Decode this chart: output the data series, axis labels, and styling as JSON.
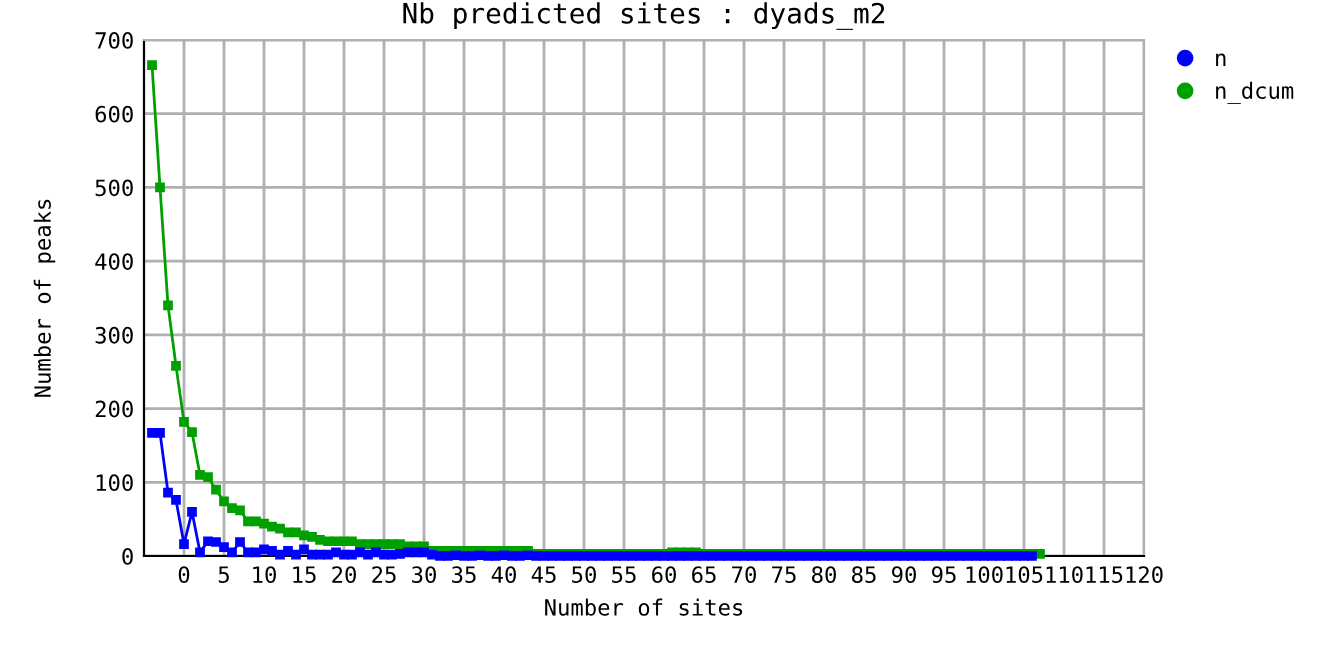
{
  "chart_data": {
    "type": "line",
    "title": "Nb predicted sites : dyads_m2",
    "xlabel": "Number of sites",
    "ylabel": "Number of peaks",
    "xlim": [
      -5,
      120
    ],
    "xticks": [
      0,
      5,
      10,
      15,
      20,
      25,
      30,
      35,
      40,
      45,
      50,
      55,
      60,
      65,
      70,
      75,
      80,
      85,
      90,
      95,
      100,
      105,
      110,
      115,
      120
    ],
    "ylim": [
      0,
      700
    ],
    "yticks": [
      0,
      100,
      200,
      300,
      400,
      500,
      600,
      700
    ],
    "grid": true,
    "legend": "top right",
    "marker": "square",
    "line_style": "solid",
    "series": [
      {
        "name": "n",
        "color": "#0000ff",
        "x": [
          -4,
          -3,
          -2,
          -1,
          0,
          1,
          2,
          3,
          4,
          5,
          6,
          7,
          8,
          9,
          10,
          11,
          12,
          13,
          14,
          15,
          16,
          17,
          18,
          19,
          20,
          21,
          22,
          23,
          24,
          25,
          26,
          27,
          28,
          29,
          30,
          31,
          32,
          33,
          34,
          35,
          36,
          37,
          38,
          39,
          40,
          41,
          42,
          43,
          44,
          45,
          46,
          47,
          48,
          49,
          50,
          51,
          52,
          53,
          54,
          55,
          56,
          57,
          58,
          59,
          60,
          61,
          62,
          63,
          64,
          65,
          66,
          67,
          68,
          69,
          70,
          71,
          72,
          73,
          74,
          75,
          76,
          77,
          78,
          79,
          80,
          81,
          82,
          83,
          84,
          85,
          86,
          87,
          88,
          89,
          90,
          91,
          92,
          93,
          94,
          95,
          96,
          97,
          98,
          99,
          100,
          101,
          102,
          103,
          104,
          105,
          106
        ],
        "values": [
          167,
          167,
          86,
          76,
          16,
          60,
          5,
          20,
          19,
          12,
          5,
          19,
          5,
          5,
          9,
          7,
          2,
          7,
          2,
          9,
          2,
          2,
          2,
          5,
          2,
          2,
          5,
          2,
          5,
          2,
          2,
          3,
          5,
          5,
          5,
          2,
          0,
          0,
          1,
          0,
          0,
          1,
          0,
          0,
          1,
          0,
          0,
          1,
          0,
          0,
          0,
          0,
          0,
          0,
          0,
          0,
          0,
          0,
          0,
          0,
          0,
          0,
          0,
          0,
          0,
          0,
          0,
          0,
          0,
          0,
          0,
          0,
          0,
          0,
          0,
          0,
          0,
          0,
          0,
          0,
          0,
          0,
          0,
          0,
          0,
          0,
          0,
          0,
          0,
          0,
          0,
          0,
          0,
          0,
          0,
          0,
          0,
          0,
          0,
          0,
          0,
          0,
          0,
          0,
          0,
          0,
          0,
          0,
          0,
          0,
          0
        ]
      },
      {
        "name": "n_dcum",
        "color": "#00a000",
        "x": [
          -4,
          -3,
          -2,
          -1,
          0,
          1,
          2,
          3,
          4,
          5,
          6,
          7,
          8,
          9,
          10,
          11,
          12,
          13,
          14,
          15,
          16,
          17,
          18,
          19,
          20,
          21,
          22,
          23,
          24,
          25,
          26,
          27,
          28,
          29,
          30,
          31,
          32,
          33,
          34,
          35,
          36,
          37,
          38,
          39,
          40,
          41,
          42,
          43,
          44,
          45,
          46,
          47,
          48,
          49,
          50,
          51,
          52,
          53,
          54,
          55,
          56,
          57,
          58,
          59,
          60,
          61,
          62,
          63,
          64,
          65,
          66,
          67,
          68,
          69,
          70,
          71,
          72,
          73,
          74,
          75,
          76,
          77,
          78,
          79,
          80,
          81,
          82,
          83,
          84,
          85,
          86,
          87,
          88,
          89,
          90,
          91,
          92,
          93,
          94,
          95,
          96,
          97,
          98,
          99,
          100,
          101,
          102,
          103,
          104,
          105,
          106,
          107
        ],
        "values": [
          666,
          500,
          340,
          258,
          182,
          168,
          110,
          107,
          90,
          74,
          65,
          62,
          47,
          47,
          44,
          40,
          37,
          32,
          32,
          28,
          26,
          22,
          20,
          20,
          20,
          20,
          16,
          16,
          16,
          16,
          16,
          16,
          13,
          13,
          13,
          7,
          7,
          7,
          7,
          7,
          7,
          7,
          7,
          7,
          7,
          7,
          7,
          7,
          3,
          3,
          3,
          3,
          3,
          3,
          3,
          3,
          3,
          3,
          3,
          3,
          3,
          3,
          3,
          3,
          3,
          5,
          5,
          5,
          5,
          3,
          3,
          3,
          3,
          3,
          3,
          3,
          3,
          3,
          3,
          3,
          3,
          3,
          3,
          3,
          3,
          3,
          3,
          3,
          3,
          3,
          3,
          3,
          3,
          3,
          3,
          3,
          3,
          3,
          3,
          3,
          3,
          3,
          3,
          3,
          3,
          3,
          3,
          3,
          3,
          3,
          3,
          3
        ]
      }
    ]
  }
}
